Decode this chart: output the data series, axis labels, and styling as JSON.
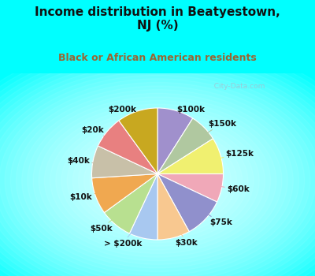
{
  "title": "Income distribution in Beatyestown,\nNJ (%)",
  "subtitle": "Black or African American residents",
  "labels": [
    "$100k",
    "$150k",
    "$125k",
    "$60k",
    "$75k",
    "$30k",
    "> $200k",
    "$50k",
    "$10k",
    "$40k",
    "$20k",
    "$200k"
  ],
  "values": [
    9,
    7,
    9,
    7,
    10,
    8,
    7,
    8,
    9,
    8,
    8,
    10
  ],
  "colors": [
    "#a090cc",
    "#b0c8a0",
    "#f0f070",
    "#f0a8b8",
    "#9090cc",
    "#f8c890",
    "#a8c8f0",
    "#b8e090",
    "#f0a850",
    "#c8c0a8",
    "#e88080",
    "#c8a820"
  ],
  "watermark": "  City-Data.com",
  "label_fontsize": 7.5,
  "title_fontsize": 11,
  "subtitle_fontsize": 9,
  "title_color": "#111111",
  "subtitle_color": "#996633",
  "cyan_bg": "#00FFFF",
  "chart_bg_center": "#ffffff",
  "chart_bg_edge": "#90d8b8"
}
